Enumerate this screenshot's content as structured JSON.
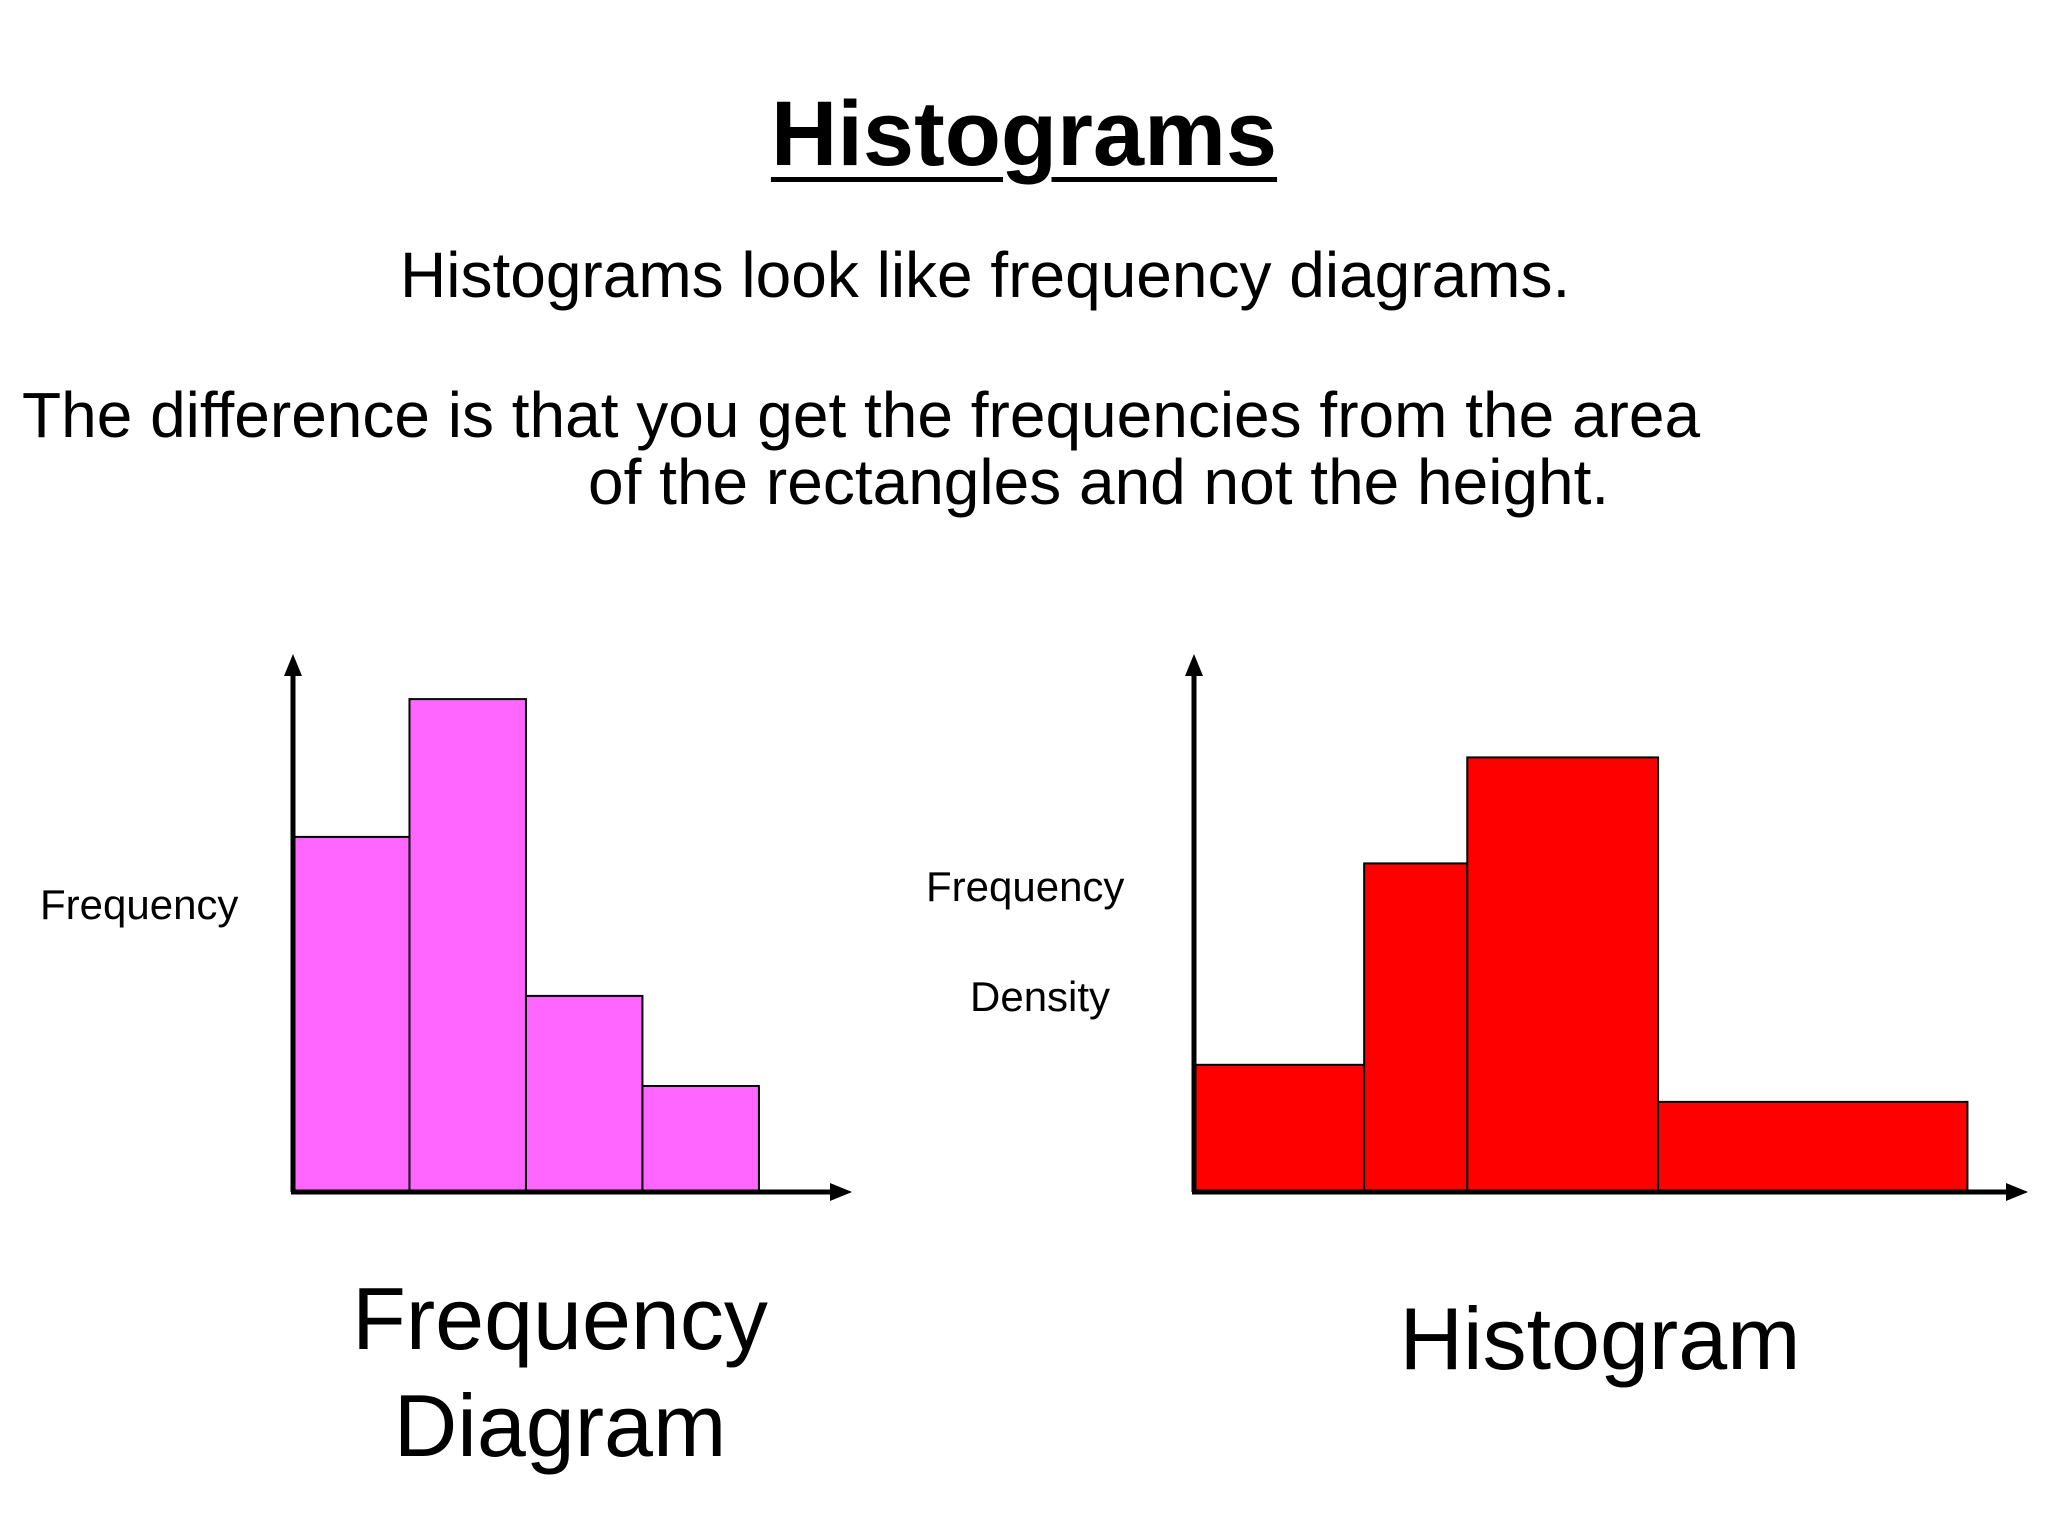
{
  "page": {
    "title": "Histograms",
    "subtitle": "Histograms look like frequency diagrams.",
    "explanation_line1": "The difference is that you get the frequencies from the area",
    "explanation_line2": "of the rectangles and not the height."
  },
  "chart_data": [
    {
      "type": "bar",
      "caption_line1": "Frequency",
      "caption_line2": "Diagram",
      "ylabel": "Frequency",
      "xlabel": "",
      "ylim": [
        0,
        10
      ],
      "bins": [
        {
          "x0": 0,
          "x1": 1,
          "value": 6.7
        },
        {
          "x0": 1,
          "x1": 2,
          "value": 9.3
        },
        {
          "x0": 2,
          "x1": 3,
          "value": 3.7
        },
        {
          "x0": 3,
          "x1": 4,
          "value": 2.0
        }
      ],
      "xlim": [
        0,
        4.55
      ],
      "color": "#ff66ff"
    },
    {
      "type": "bar",
      "caption_line1": "Histogram",
      "caption_line2": "",
      "ylabel_line1": "Frequency",
      "ylabel_line2": "Density",
      "xlabel": "",
      "ylim": [
        0,
        10
      ],
      "bins": [
        {
          "x0": 0,
          "x1": 1.65,
          "value": 2.4
        },
        {
          "x0": 1.65,
          "x1": 2.65,
          "value": 6.2
        },
        {
          "x0": 2.65,
          "x1": 4.5,
          "value": 8.2
        },
        {
          "x0": 4.5,
          "x1": 7.5,
          "value": 1.7
        }
      ],
      "xlim": [
        0,
        8.0
      ],
      "color": "#ff0000"
    }
  ]
}
